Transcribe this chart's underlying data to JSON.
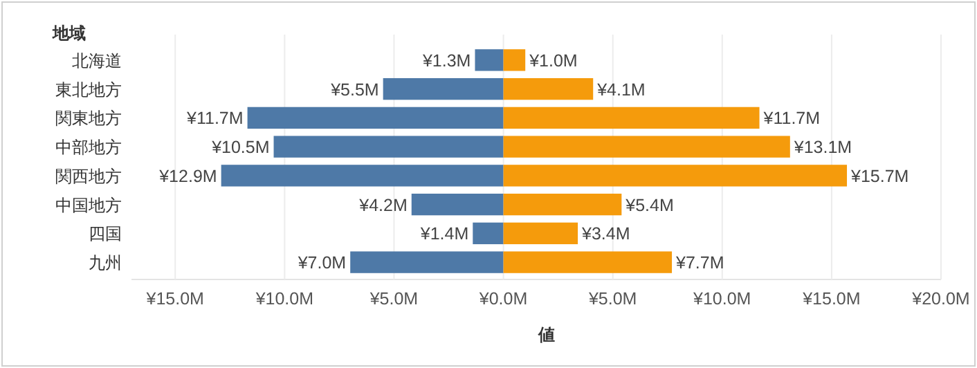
{
  "chart_data": [
    {
      "type": "bar",
      "orientation": "horizontal",
      "ylabel": "地域",
      "categories": [
        "北海道",
        "東北地方",
        "関東地方",
        "中部地方",
        "関西地方",
        "中国地方",
        "四国",
        "九州"
      ],
      "series": [
        {
          "color": "#4e79a7",
          "values": [
            1.3,
            5.5,
            11.7,
            10.5,
            12.9,
            4.2,
            1.4,
            7.0
          ],
          "value_labels": [
            "¥1.3M",
            "¥5.5M",
            "¥11.7M",
            "¥10.5M",
            "¥12.9M",
            "¥4.2M",
            "¥1.4M",
            "¥7.0M"
          ]
        }
      ],
      "xlim": [
        17,
        0
      ],
      "xticks": [
        {
          "value": 15,
          "label": "¥15.0M"
        },
        {
          "value": 10,
          "label": "¥10.0M"
        },
        {
          "value": 5,
          "label": "¥5.0M"
        },
        {
          "value": 0,
          "label": "¥0.0M"
        }
      ],
      "grid": "x"
    },
    {
      "type": "bar",
      "orientation": "horizontal",
      "xlabel": "値",
      "tick_labels": "x",
      "categories": [
        null,
        null,
        null,
        null,
        null,
        null,
        null,
        null
      ],
      "series": [
        {
          "color": "#f59b0c",
          "values": [
            1.0,
            4.1,
            11.7,
            13.1,
            15.7,
            5.4,
            3.4,
            7.7
          ],
          "value_labels": [
            "¥1.0M",
            "¥4.1M",
            "¥11.7M",
            "¥13.1M",
            "¥15.7M",
            "¥5.4M",
            "¥3.4M",
            "¥7.7M"
          ]
        }
      ],
      "xlim": [
        0,
        20
      ],
      "xticks": [
        {
          "value": 5,
          "label": "¥5.0M"
        },
        {
          "value": 10,
          "label": "¥10.0M"
        },
        {
          "value": 15,
          "label": "¥15.0M"
        },
        {
          "value": 20,
          "label": "¥20.0M"
        }
      ],
      "grid": "x"
    }
  ]
}
